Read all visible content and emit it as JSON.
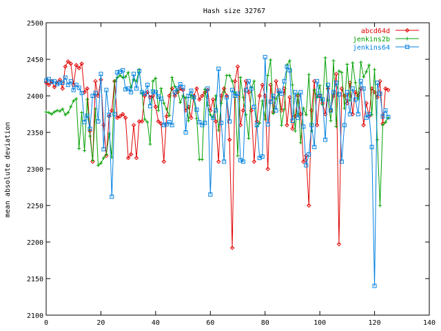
{
  "chart_data": {
    "type": "line",
    "title": "Hash size 32767",
    "xlabel": "",
    "ylabel": "mean absolute deviation",
    "xlim": [
      0,
      140
    ],
    "ylim": [
      2100,
      2500
    ],
    "xticks": [
      0,
      20,
      40,
      60,
      80,
      100,
      120,
      140
    ],
    "yticks": [
      2100,
      2150,
      2200,
      2250,
      2300,
      2350,
      2400,
      2450,
      2500
    ],
    "grid": false,
    "legend_position": "top-right",
    "series": [
      {
        "name": "abcd64d",
        "color": "#e00000",
        "marker": "diamond",
        "x": [
          0,
          1,
          2,
          3,
          4,
          5,
          6,
          7,
          8,
          9,
          10,
          11,
          12,
          13,
          14,
          15,
          16,
          17,
          18,
          19,
          20,
          21,
          22,
          23,
          24,
          25,
          26,
          27,
          28,
          29,
          30,
          31,
          32,
          33,
          34,
          35,
          36,
          37,
          38,
          39,
          40,
          41,
          42,
          43,
          44,
          45,
          46,
          47,
          48,
          49,
          50,
          51,
          52,
          53,
          54,
          55,
          56,
          57,
          58,
          59,
          60,
          61,
          62,
          63,
          64,
          65,
          66,
          67,
          68,
          69,
          70,
          71,
          72,
          73,
          74,
          75,
          76,
          77,
          78,
          79,
          80,
          81,
          82,
          83,
          84,
          85,
          86,
          87,
          88,
          89,
          90,
          91,
          92,
          93,
          94,
          95,
          96,
          97,
          98,
          99,
          100,
          101,
          102,
          103,
          104,
          105,
          106,
          107,
          108,
          109,
          110,
          111,
          112,
          113,
          114,
          115,
          116,
          117,
          118,
          119,
          120,
          121,
          122,
          123,
          124,
          125
        ],
        "values": [
          2418,
          2415,
          2420,
          2412,
          2418,
          2422,
          2410,
          2440,
          2447,
          2444,
          2415,
          2442,
          2438,
          2444,
          2405,
          2410,
          2352,
          2310,
          2420,
          2400,
          2422,
          2360,
          2318,
          2372,
          2380,
          2420,
          2370,
          2372,
          2375,
          2370,
          2315,
          2320,
          2360,
          2315,
          2365,
          2365,
          2400,
          2405,
          2398,
          2400,
          2385,
          2365,
          2362,
          2310,
          2372,
          2400,
          2410,
          2400,
          2405,
          2410,
          2408,
          2380,
          2385,
          2370,
          2400,
          2410,
          2395,
          2400,
          2405,
          2408,
          2380,
          2395,
          2365,
          2310,
          2400,
          2410,
          2400,
          2340,
          2192,
          2420,
          2440,
          2360,
          2380,
          2420,
          2405,
          2380,
          2310,
          2365,
          2400,
          2415,
          2400,
          2300,
          2415,
          2378,
          2420,
          2405,
          2380,
          2410,
          2360,
          2398,
          2355,
          2372,
          2400,
          2375,
          2310,
          2318,
          2250,
          2380,
          2420,
          2360,
          2400,
          2390,
          2375,
          2410,
          2380,
          2400,
          2430,
          2197,
          2410,
          2400,
          2390,
          2418,
          2375,
          2405,
          2400,
          2410,
          2360,
          2390,
          2372,
          2410,
          2405,
          2398,
          2420,
          2362,
          2410,
          2408
        ]
      },
      {
        "name": "jenkins2b",
        "color": "#00a000",
        "marker": "cross",
        "x": [
          0,
          1,
          2,
          3,
          4,
          5,
          6,
          7,
          8,
          9,
          10,
          11,
          12,
          13,
          14,
          15,
          16,
          17,
          18,
          19,
          20,
          21,
          22,
          23,
          24,
          25,
          26,
          27,
          28,
          29,
          30,
          31,
          32,
          33,
          34,
          35,
          36,
          37,
          38,
          39,
          40,
          41,
          42,
          43,
          44,
          45,
          46,
          47,
          48,
          49,
          50,
          51,
          52,
          53,
          54,
          55,
          56,
          57,
          58,
          59,
          60,
          61,
          62,
          63,
          64,
          65,
          66,
          67,
          68,
          69,
          70,
          71,
          72,
          73,
          74,
          75,
          76,
          77,
          78,
          79,
          80,
          81,
          82,
          83,
          84,
          85,
          86,
          87,
          88,
          89,
          90,
          91,
          92,
          93,
          94,
          95,
          96,
          97,
          98,
          99,
          100,
          101,
          102,
          103,
          104,
          105,
          106,
          107,
          108,
          109,
          110,
          111,
          112,
          113,
          114,
          115,
          116,
          117,
          118,
          119,
          120,
          121,
          122,
          123,
          124,
          125
        ],
        "values": [
          2378,
          2377,
          2375,
          2378,
          2380,
          2379,
          2382,
          2374,
          2377,
          2385,
          2393,
          2396,
          2328,
          2377,
          2325,
          2395,
          2345,
          2312,
          2382,
          2305,
          2308,
          2315,
          2320,
          2348,
          2316,
          2420,
          2425,
          2428,
          2425,
          2426,
          2432,
          2412,
          2422,
          2420,
          2436,
          2404,
          2368,
          2364,
          2334,
          2420,
          2424,
          2380,
          2410,
          2390,
          2382,
          2373,
          2425,
          2413,
          2408,
          2391,
          2400,
          2397,
          2366,
          2401,
          2397,
          2369,
          2313,
          2313,
          2409,
          2387,
          2374,
          2370,
          2400,
          2353,
          2390,
          2405,
          2428,
          2428,
          2420,
          2404,
          2318,
          2425,
          2398,
          2374,
          2342,
          2411,
          2420,
          2358,
          2363,
          2393,
          2368,
          2428,
          2449,
          2376,
          2396,
          2405,
          2360,
          2382,
          2442,
          2448,
          2415,
          2352,
          2402,
          2336,
          2383,
          2374,
          2429,
          2352,
          2408,
          2398,
          2414,
          2388,
          2452,
          2394,
          2366,
          2448,
          2358,
          2434,
          2432,
          2383,
          2443,
          2394,
          2445,
          2418,
          2396,
          2446,
          2426,
          2433,
          2442,
          2374,
          2436,
          2340,
          2250,
          2360,
          2364,
          2370
        ]
      },
      {
        "name": "jenkins64",
        "color": "#0080e0",
        "marker": "square",
        "x": [
          0,
          1,
          2,
          3,
          4,
          5,
          6,
          7,
          8,
          9,
          10,
          11,
          12,
          13,
          14,
          15,
          16,
          17,
          18,
          19,
          20,
          21,
          22,
          23,
          24,
          25,
          26,
          27,
          28,
          29,
          30,
          31,
          32,
          33,
          34,
          35,
          36,
          37,
          38,
          39,
          40,
          41,
          42,
          43,
          44,
          45,
          46,
          47,
          48,
          49,
          50,
          51,
          52,
          53,
          54,
          55,
          56,
          57,
          58,
          59,
          60,
          61,
          62,
          63,
          64,
          65,
          66,
          67,
          68,
          69,
          70,
          71,
          72,
          73,
          74,
          75,
          76,
          77,
          78,
          79,
          80,
          81,
          82,
          83,
          84,
          85,
          86,
          87,
          88,
          89,
          90,
          91,
          92,
          93,
          94,
          95,
          96,
          97,
          98,
          99,
          100,
          101,
          102,
          103,
          104,
          105,
          106,
          107,
          108,
          109,
          110,
          111,
          112,
          113,
          114,
          115,
          116,
          117,
          118,
          119,
          120,
          121,
          122,
          123,
          124,
          125
        ],
        "values": [
          2421,
          2423,
          2419,
          2420,
          2416,
          2418,
          2418,
          2425,
          2415,
          2420,
          2408,
          2415,
          2411,
          2404,
          2364,
          2373,
          2355,
          2400,
          2404,
          2365,
          2430,
          2327,
          2408,
          2374,
          2262,
          2375,
          2432,
          2433,
          2435,
          2409,
          2410,
          2405,
          2430,
          2410,
          2434,
          2405,
          2403,
          2415,
          2386,
          2406,
          2405,
          2399,
          2396,
          2360,
          2361,
          2364,
          2360,
          2405,
          2410,
          2416,
          2412,
          2350,
          2400,
          2407,
          2398,
          2381,
          2364,
          2360,
          2363,
          2410,
          2265,
          2370,
          2380,
          2437,
          2363,
          2310,
          2398,
          2365,
          2408,
          2400,
          2403,
          2312,
          2310,
          2408,
          2420,
          2410,
          2385,
          2360,
          2315,
          2317,
          2453,
          2361,
          2392,
          2400,
          2380,
          2407,
          2403,
          2420,
          2440,
          2435,
          2366,
          2405,
          2370,
          2405,
          2358,
          2305,
          2320,
          2360,
          2330,
          2420,
          2400,
          2395,
          2340,
          2415,
          2380,
          2405,
          2418,
          2402,
          2310,
          2360,
          2405,
          2375,
          2410,
          2395,
          2375,
          2420,
          2410,
          2370,
          2375,
          2330,
          2140,
          2418,
          2403,
          2372,
          2380,
          2371
        ]
      }
    ]
  }
}
